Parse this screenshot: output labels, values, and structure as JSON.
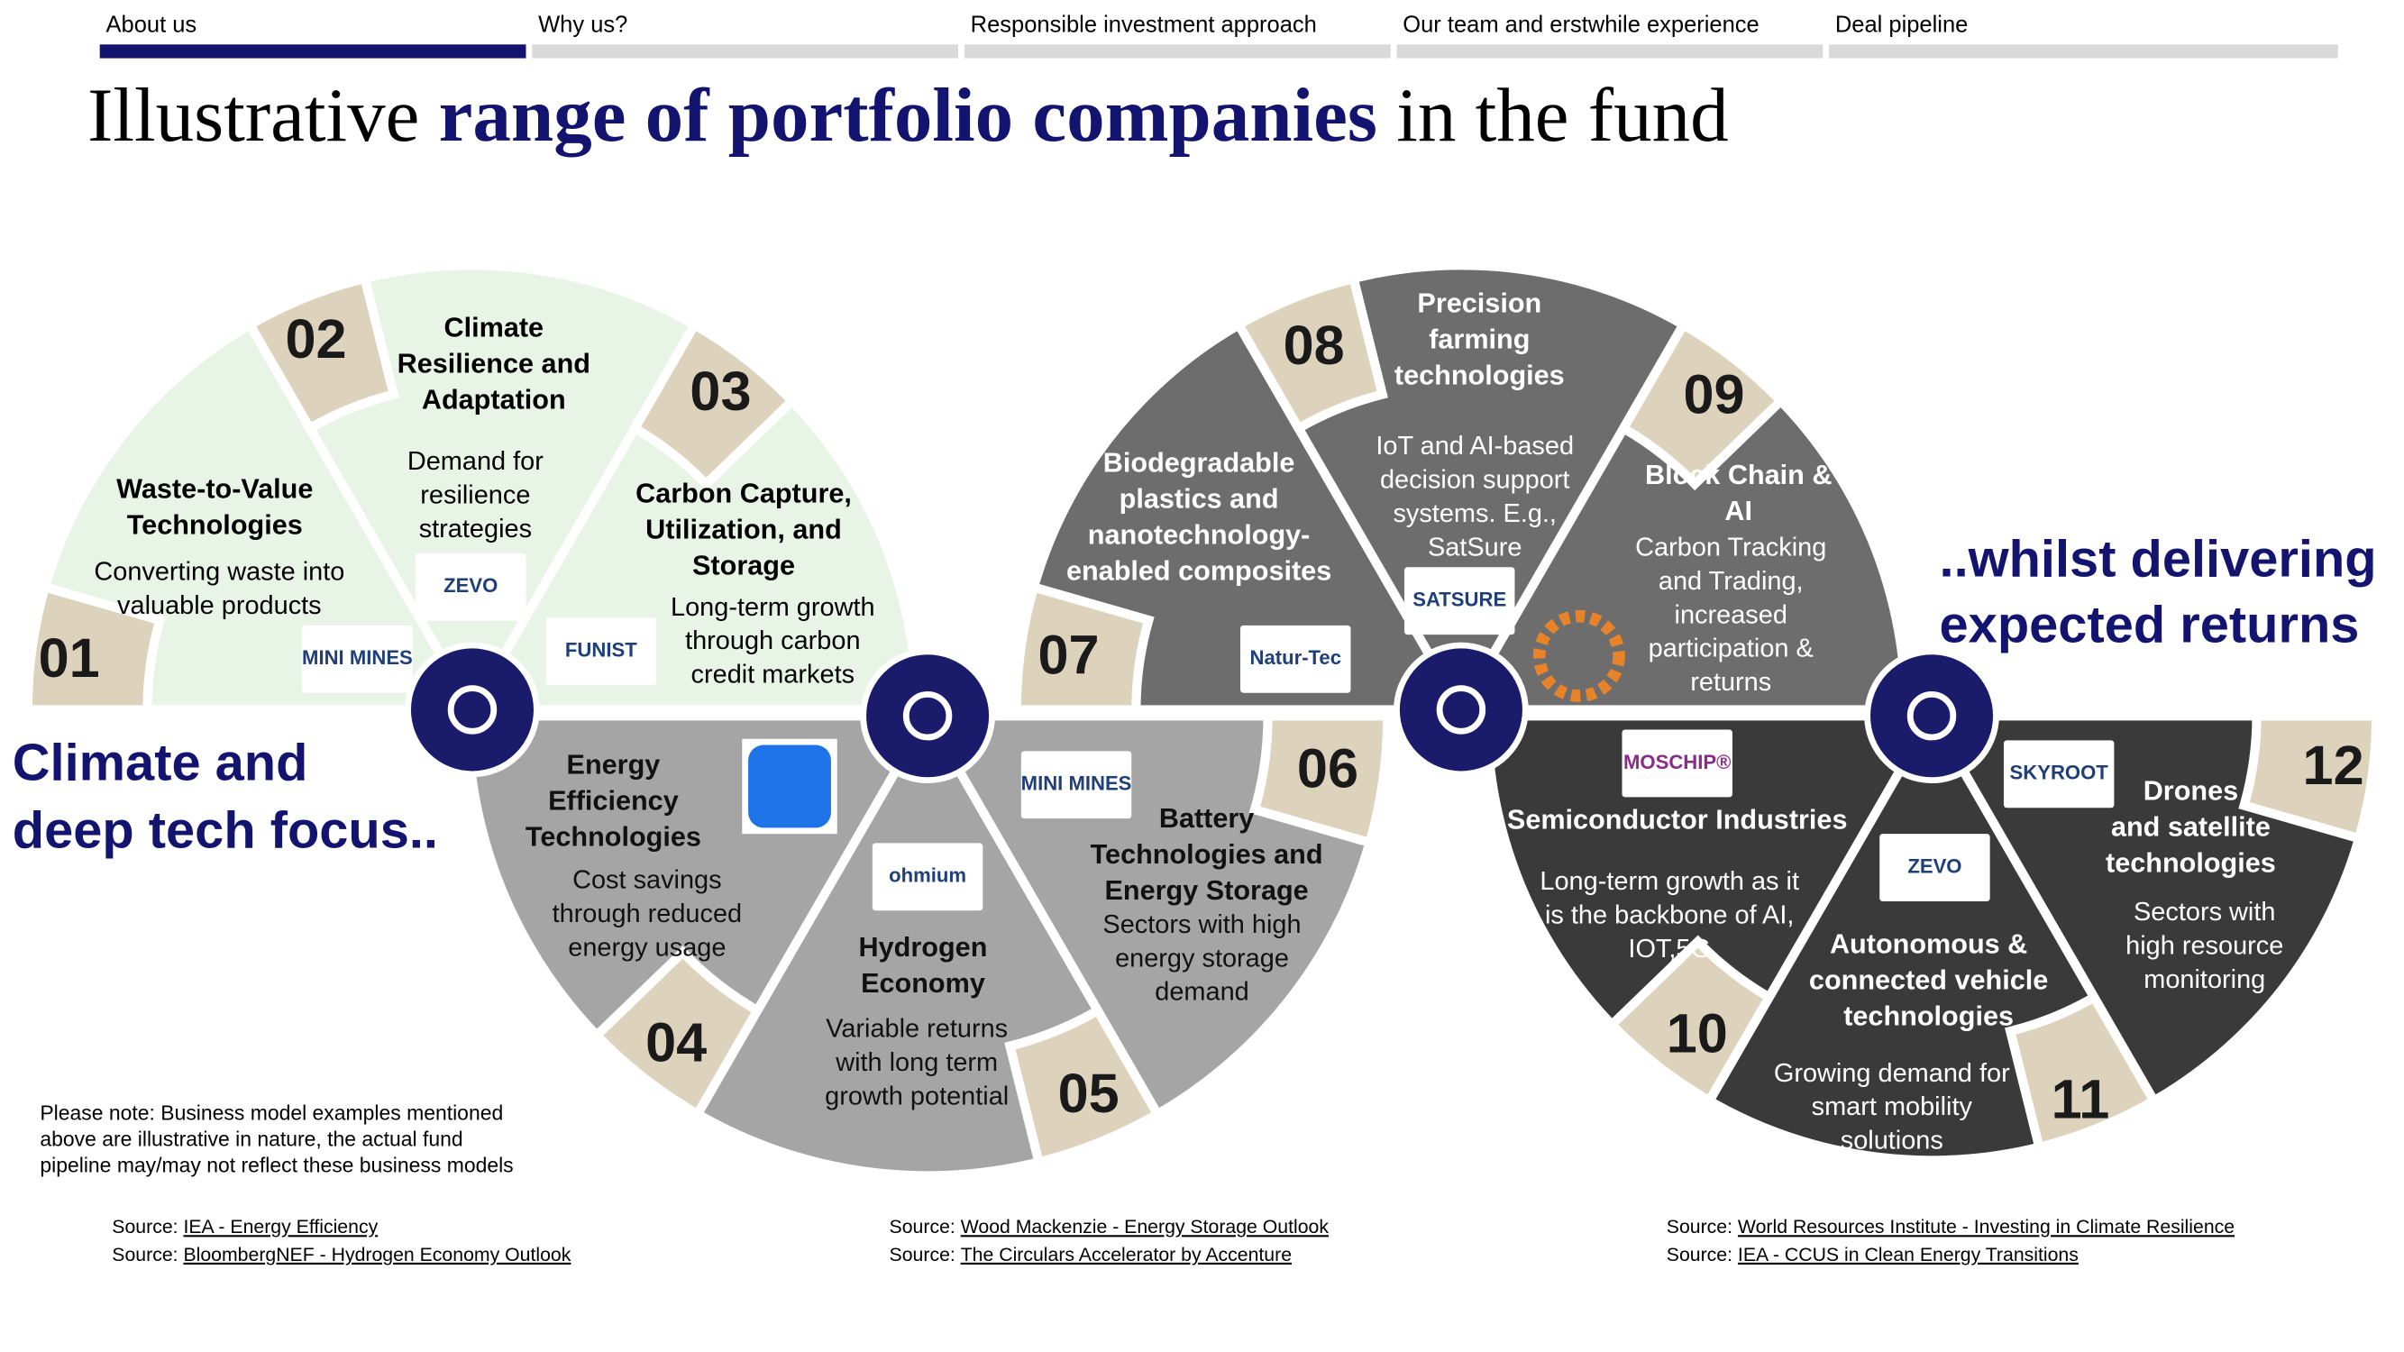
{
  "nav": [
    "About us",
    "Why us?",
    "Responsible investment approach",
    "Our team and erstwhile experience",
    "Deal pipeline"
  ],
  "header": {
    "title_start": "Illustrative",
    "title_bold": "range of portfolio companies",
    "title_end": "in the fund"
  },
  "left_text": [
    "Climate and",
    "deep tech focus.."
  ],
  "right_text": [
    "..whilst delivering",
    "expected returns"
  ],
  "segments": [
    {
      "number": "01",
      "title": [
        "Waste-to-Value",
        "Technologies"
      ],
      "description": [
        "Converting waste into",
        "valuable products"
      ],
      "logo": "MINI MINES"
    },
    {
      "number": "02",
      "title": [
        "Climate",
        "Resilience and",
        "Adaptation"
      ],
      "description": [
        "Demand for",
        "resilience",
        "strategies"
      ],
      "logo": "ZEVO"
    },
    {
      "number": "03",
      "title": [
        "Carbon Capture,",
        "Utilization, and",
        "Storage"
      ],
      "description": [
        "Long-term growth",
        "through carbon",
        "credit markets"
      ],
      "logo": "FUNIST"
    },
    {
      "number": "04",
      "title": [
        "Energy",
        "Efficiency",
        "Technologies"
      ],
      "description": [
        "Cost savings",
        "through reduced",
        "energy usage"
      ]
    },
    {
      "number": "05",
      "title": [
        "Hydrogen",
        "Economy"
      ],
      "description": [
        "Variable returns",
        "with long term",
        "growth potential"
      ],
      "logo": "ohmium"
    },
    {
      "number": "06",
      "title": [
        "Battery",
        "Technologies and",
        "Energy Storage"
      ],
      "description": [
        "Sectors with high",
        "energy storage",
        "demand"
      ],
      "logo": "MINI MINES"
    },
    {
      "number": "07",
      "title": [
        "Biodegradable",
        "plastics and",
        "nanotechnology-",
        "enabled composites"
      ],
      "logo": "Natur-Tec"
    },
    {
      "number": "08",
      "title": [
        "Precision",
        "farming",
        "technologies"
      ],
      "description": [
        "IoT and AI-based",
        "decision support",
        "systems. E.g.,",
        "SatSure"
      ],
      "logo": "SATSURE"
    },
    {
      "number": "09",
      "title": [
        "Block Chain &",
        "AI"
      ],
      "description": [
        "Carbon Tracking",
        "and Trading,",
        "increased",
        "participation &",
        "returns"
      ]
    },
    {
      "number": "10",
      "title": [
        "Semiconductor Industries"
      ],
      "description": [
        "Long-term growth as it",
        "is the backbone of AI,",
        "IOT,5G"
      ],
      "logo": "MOSCHIP®"
    },
    {
      "number": "11",
      "title": [
        "Autonomous &",
        "connected vehicle",
        "technologies"
      ],
      "description": [
        "Growing demand for",
        "smart mobility",
        "solutions"
      ],
      "logo": "ZEVO"
    },
    {
      "number": "12",
      "title": [
        "Drones",
        "and satellite",
        "technologies"
      ],
      "description": [
        "Sectors with",
        "high resource",
        "monitoring"
      ],
      "logo": "SKYROOT"
    }
  ],
  "note": [
    "Please note: Business model examples mentioned",
    "above are illustrative in nature, the actual fund",
    "pipeline may/may not reflect these business models"
  ],
  "sources": [
    {
      "label": "Source:",
      "link": "IEA - Energy Efficiency"
    },
    {
      "label": "Source:",
      "link": "BloombergNEF - Hydrogen Economy Outlook"
    },
    {
      "label": "Source:",
      "link": "Wood Mackenzie - Energy Storage Outlook"
    },
    {
      "label": "Source:",
      "link": "The Circulars Accelerator by Accenture"
    },
    {
      "label": "Source:",
      "link": "World Resources Institute - Investing in Climate Resilience"
    },
    {
      "label": "Source:",
      "link": "IEA - CCUS in Clean Energy Transitions"
    }
  ]
}
